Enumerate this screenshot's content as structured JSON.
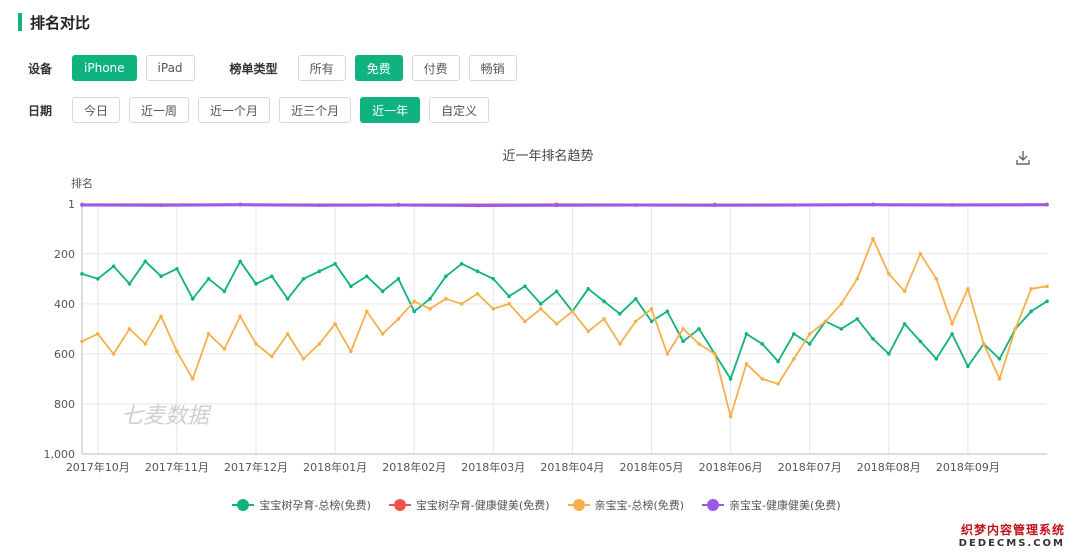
{
  "section_title": "排名对比",
  "filters": {
    "device_label": "设备",
    "devices": [
      "iPhone",
      "iPad"
    ],
    "device_active": 0,
    "chart_type_label": "榜单类型",
    "chart_types": [
      "所有",
      "免费",
      "付费",
      "畅销"
    ],
    "chart_type_active": 1,
    "date_label": "日期",
    "dates": [
      "今日",
      "近一周",
      "近一个月",
      "近三个月",
      "近一年",
      "自定义"
    ],
    "date_active": 4
  },
  "colors": {
    "accent": "#0fb37f"
  },
  "icons": {
    "download": "download-icon"
  },
  "watermark_chart": "七麦数据",
  "watermark_site": {
    "cn": "织梦内容管理系统",
    "en": "DEDECMS.COM"
  },
  "chart_data": {
    "type": "line",
    "title": "近一年排名趋势",
    "ylabel": "排名",
    "y_inverted": true,
    "ylim": [
      1,
      1000
    ],
    "y_ticks": [
      "1",
      "200",
      "400",
      "600",
      "800",
      "1,000"
    ],
    "x_labels": [
      "2017年10月",
      "2017年11月",
      "2017年12月",
      "2018年01月",
      "2018年02月",
      "2018年03月",
      "2018年04月",
      "2018年05月",
      "2018年06月",
      "2018年07月",
      "2018年08月",
      "2018年09月"
    ],
    "grid": true,
    "legend_position": "bottom",
    "series": [
      {
        "name": "宝宝树孕育-总榜(免费)",
        "color": "#10b27c",
        "points": [
          [
            0,
            280
          ],
          [
            0.2,
            300
          ],
          [
            0.4,
            250
          ],
          [
            0.6,
            320
          ],
          [
            0.8,
            230
          ],
          [
            1.0,
            290
          ],
          [
            1.2,
            260
          ],
          [
            1.4,
            380
          ],
          [
            1.6,
            300
          ],
          [
            1.8,
            350
          ],
          [
            2.0,
            230
          ],
          [
            2.2,
            320
          ],
          [
            2.4,
            290
          ],
          [
            2.6,
            380
          ],
          [
            2.8,
            300
          ],
          [
            3.0,
            270
          ],
          [
            3.2,
            240
          ],
          [
            3.4,
            330
          ],
          [
            3.6,
            290
          ],
          [
            3.8,
            350
          ],
          [
            4.0,
            300
          ],
          [
            4.2,
            430
          ],
          [
            4.4,
            380
          ],
          [
            4.6,
            290
          ],
          [
            4.8,
            240
          ],
          [
            5.0,
            270
          ],
          [
            5.2,
            300
          ],
          [
            5.4,
            370
          ],
          [
            5.6,
            330
          ],
          [
            5.8,
            400
          ],
          [
            6.0,
            350
          ],
          [
            6.2,
            430
          ],
          [
            6.4,
            340
          ],
          [
            6.6,
            390
          ],
          [
            6.8,
            440
          ],
          [
            7.0,
            380
          ],
          [
            7.2,
            470
          ],
          [
            7.4,
            430
          ],
          [
            7.6,
            550
          ],
          [
            7.8,
            500
          ],
          [
            8.0,
            600
          ],
          [
            8.2,
            700
          ],
          [
            8.4,
            520
          ],
          [
            8.6,
            560
          ],
          [
            8.8,
            630
          ],
          [
            9.0,
            520
          ],
          [
            9.2,
            560
          ],
          [
            9.4,
            470
          ],
          [
            9.6,
            500
          ],
          [
            9.8,
            460
          ],
          [
            10.0,
            540
          ],
          [
            10.2,
            600
          ],
          [
            10.4,
            480
          ],
          [
            10.6,
            550
          ],
          [
            10.8,
            620
          ],
          [
            11.0,
            520
          ],
          [
            11.2,
            650
          ],
          [
            11.4,
            560
          ],
          [
            11.6,
            620
          ],
          [
            11.8,
            500
          ],
          [
            12.0,
            430
          ],
          [
            12.2,
            390
          ]
        ]
      },
      {
        "name": "宝宝树孕育-健康健美(免费)",
        "color": "#ef5350",
        "points": [
          [
            0,
            2
          ],
          [
            2,
            2
          ],
          [
            4,
            3
          ],
          [
            6,
            2
          ],
          [
            8,
            3
          ],
          [
            10,
            2
          ],
          [
            12.2,
            2
          ]
        ]
      },
      {
        "name": "亲宝宝-总榜(免费)",
        "color": "#f5b04c",
        "points": [
          [
            0,
            550
          ],
          [
            0.2,
            520
          ],
          [
            0.4,
            600
          ],
          [
            0.6,
            500
          ],
          [
            0.8,
            560
          ],
          [
            1.0,
            450
          ],
          [
            1.2,
            590
          ],
          [
            1.4,
            700
          ],
          [
            1.6,
            520
          ],
          [
            1.8,
            580
          ],
          [
            2.0,
            450
          ],
          [
            2.2,
            560
          ],
          [
            2.4,
            610
          ],
          [
            2.6,
            520
          ],
          [
            2.8,
            620
          ],
          [
            3.0,
            560
          ],
          [
            3.2,
            480
          ],
          [
            3.4,
            590
          ],
          [
            3.6,
            430
          ],
          [
            3.8,
            520
          ],
          [
            4.0,
            460
          ],
          [
            4.2,
            390
          ],
          [
            4.4,
            420
          ],
          [
            4.6,
            380
          ],
          [
            4.8,
            400
          ],
          [
            5.0,
            360
          ],
          [
            5.2,
            420
          ],
          [
            5.4,
            400
          ],
          [
            5.6,
            470
          ],
          [
            5.8,
            420
          ],
          [
            6.0,
            480
          ],
          [
            6.2,
            430
          ],
          [
            6.4,
            510
          ],
          [
            6.6,
            460
          ],
          [
            6.8,
            560
          ],
          [
            7.0,
            470
          ],
          [
            7.2,
            420
          ],
          [
            7.4,
            600
          ],
          [
            7.6,
            500
          ],
          [
            7.8,
            560
          ],
          [
            8.0,
            600
          ],
          [
            8.2,
            850
          ],
          [
            8.4,
            640
          ],
          [
            8.6,
            700
          ],
          [
            8.8,
            720
          ],
          [
            9.0,
            620
          ],
          [
            9.2,
            520
          ],
          [
            9.4,
            470
          ],
          [
            9.6,
            400
          ],
          [
            9.8,
            300
          ],
          [
            10.0,
            140
          ],
          [
            10.2,
            280
          ],
          [
            10.4,
            350
          ],
          [
            10.6,
            200
          ],
          [
            10.8,
            300
          ],
          [
            11.0,
            480
          ],
          [
            11.2,
            340
          ],
          [
            11.4,
            560
          ],
          [
            11.6,
            700
          ],
          [
            11.8,
            500
          ],
          [
            12.0,
            340
          ],
          [
            12.2,
            330
          ]
        ]
      },
      {
        "name": "亲宝宝-健康健美(免费)",
        "color": "#9c58e6",
        "points": [
          [
            0,
            5
          ],
          [
            1,
            6
          ],
          [
            2,
            4
          ],
          [
            3,
            6
          ],
          [
            4,
            5
          ],
          [
            5,
            7
          ],
          [
            6,
            6
          ],
          [
            7,
            5
          ],
          [
            8,
            6
          ],
          [
            9,
            5
          ],
          [
            10,
            4
          ],
          [
            11,
            5
          ],
          [
            12.2,
            4
          ]
        ]
      }
    ]
  }
}
